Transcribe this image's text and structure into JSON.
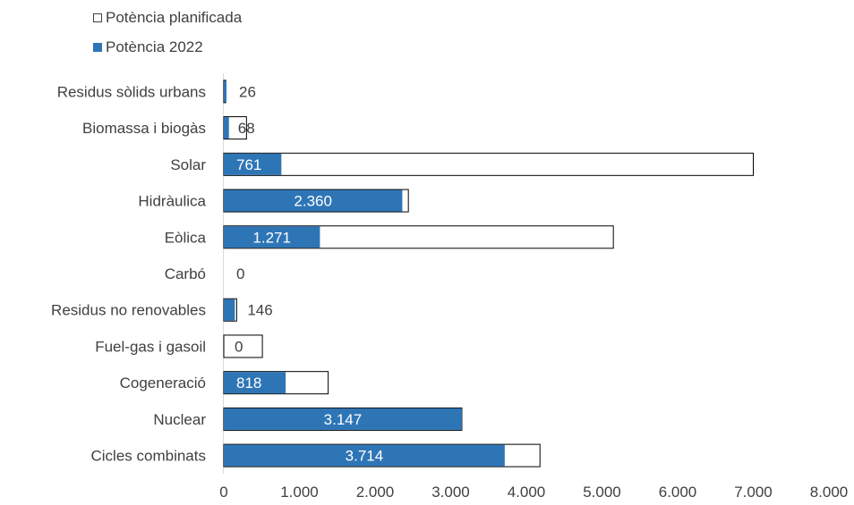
{
  "chart_data": {
    "type": "bar",
    "orientation": "horizontal",
    "title": "",
    "xlabel": "",
    "ylabel": "",
    "xlim": [
      0,
      8000
    ],
    "x_ticks": [
      "0",
      "1.000",
      "2.000",
      "3.000",
      "4.000",
      "5.000",
      "6.000",
      "7.000",
      "8.000"
    ],
    "legend_position": "top-left",
    "grid": false,
    "categories": [
      "Residus sòlids urbans",
      "Biomassa i biogàs",
      "Solar",
      "Hidràulica",
      "Eòlica",
      "Carbó",
      "Residus no renovables",
      "Fuel-gas i gasoil",
      "Cogeneració",
      "Nuclear",
      "Cicles combinats"
    ],
    "series": [
      {
        "name": "Potència planificada",
        "color": "#ffffff",
        "border": "#000000",
        "values": [
          26,
          300,
          7000,
          2440,
          5150,
          0,
          170,
          510,
          1380,
          3147,
          4180
        ]
      },
      {
        "name": "Potència 2022",
        "color": "#2e75b6",
        "values": [
          26,
          68,
          761,
          2360,
          1271,
          0,
          146,
          0,
          818,
          3147,
          3714
        ]
      }
    ],
    "data_labels": [
      "26",
      "68",
      "761",
      "2.360",
      "1.271",
      "0",
      "146",
      "0",
      "818",
      "3.147",
      "3.714"
    ]
  }
}
